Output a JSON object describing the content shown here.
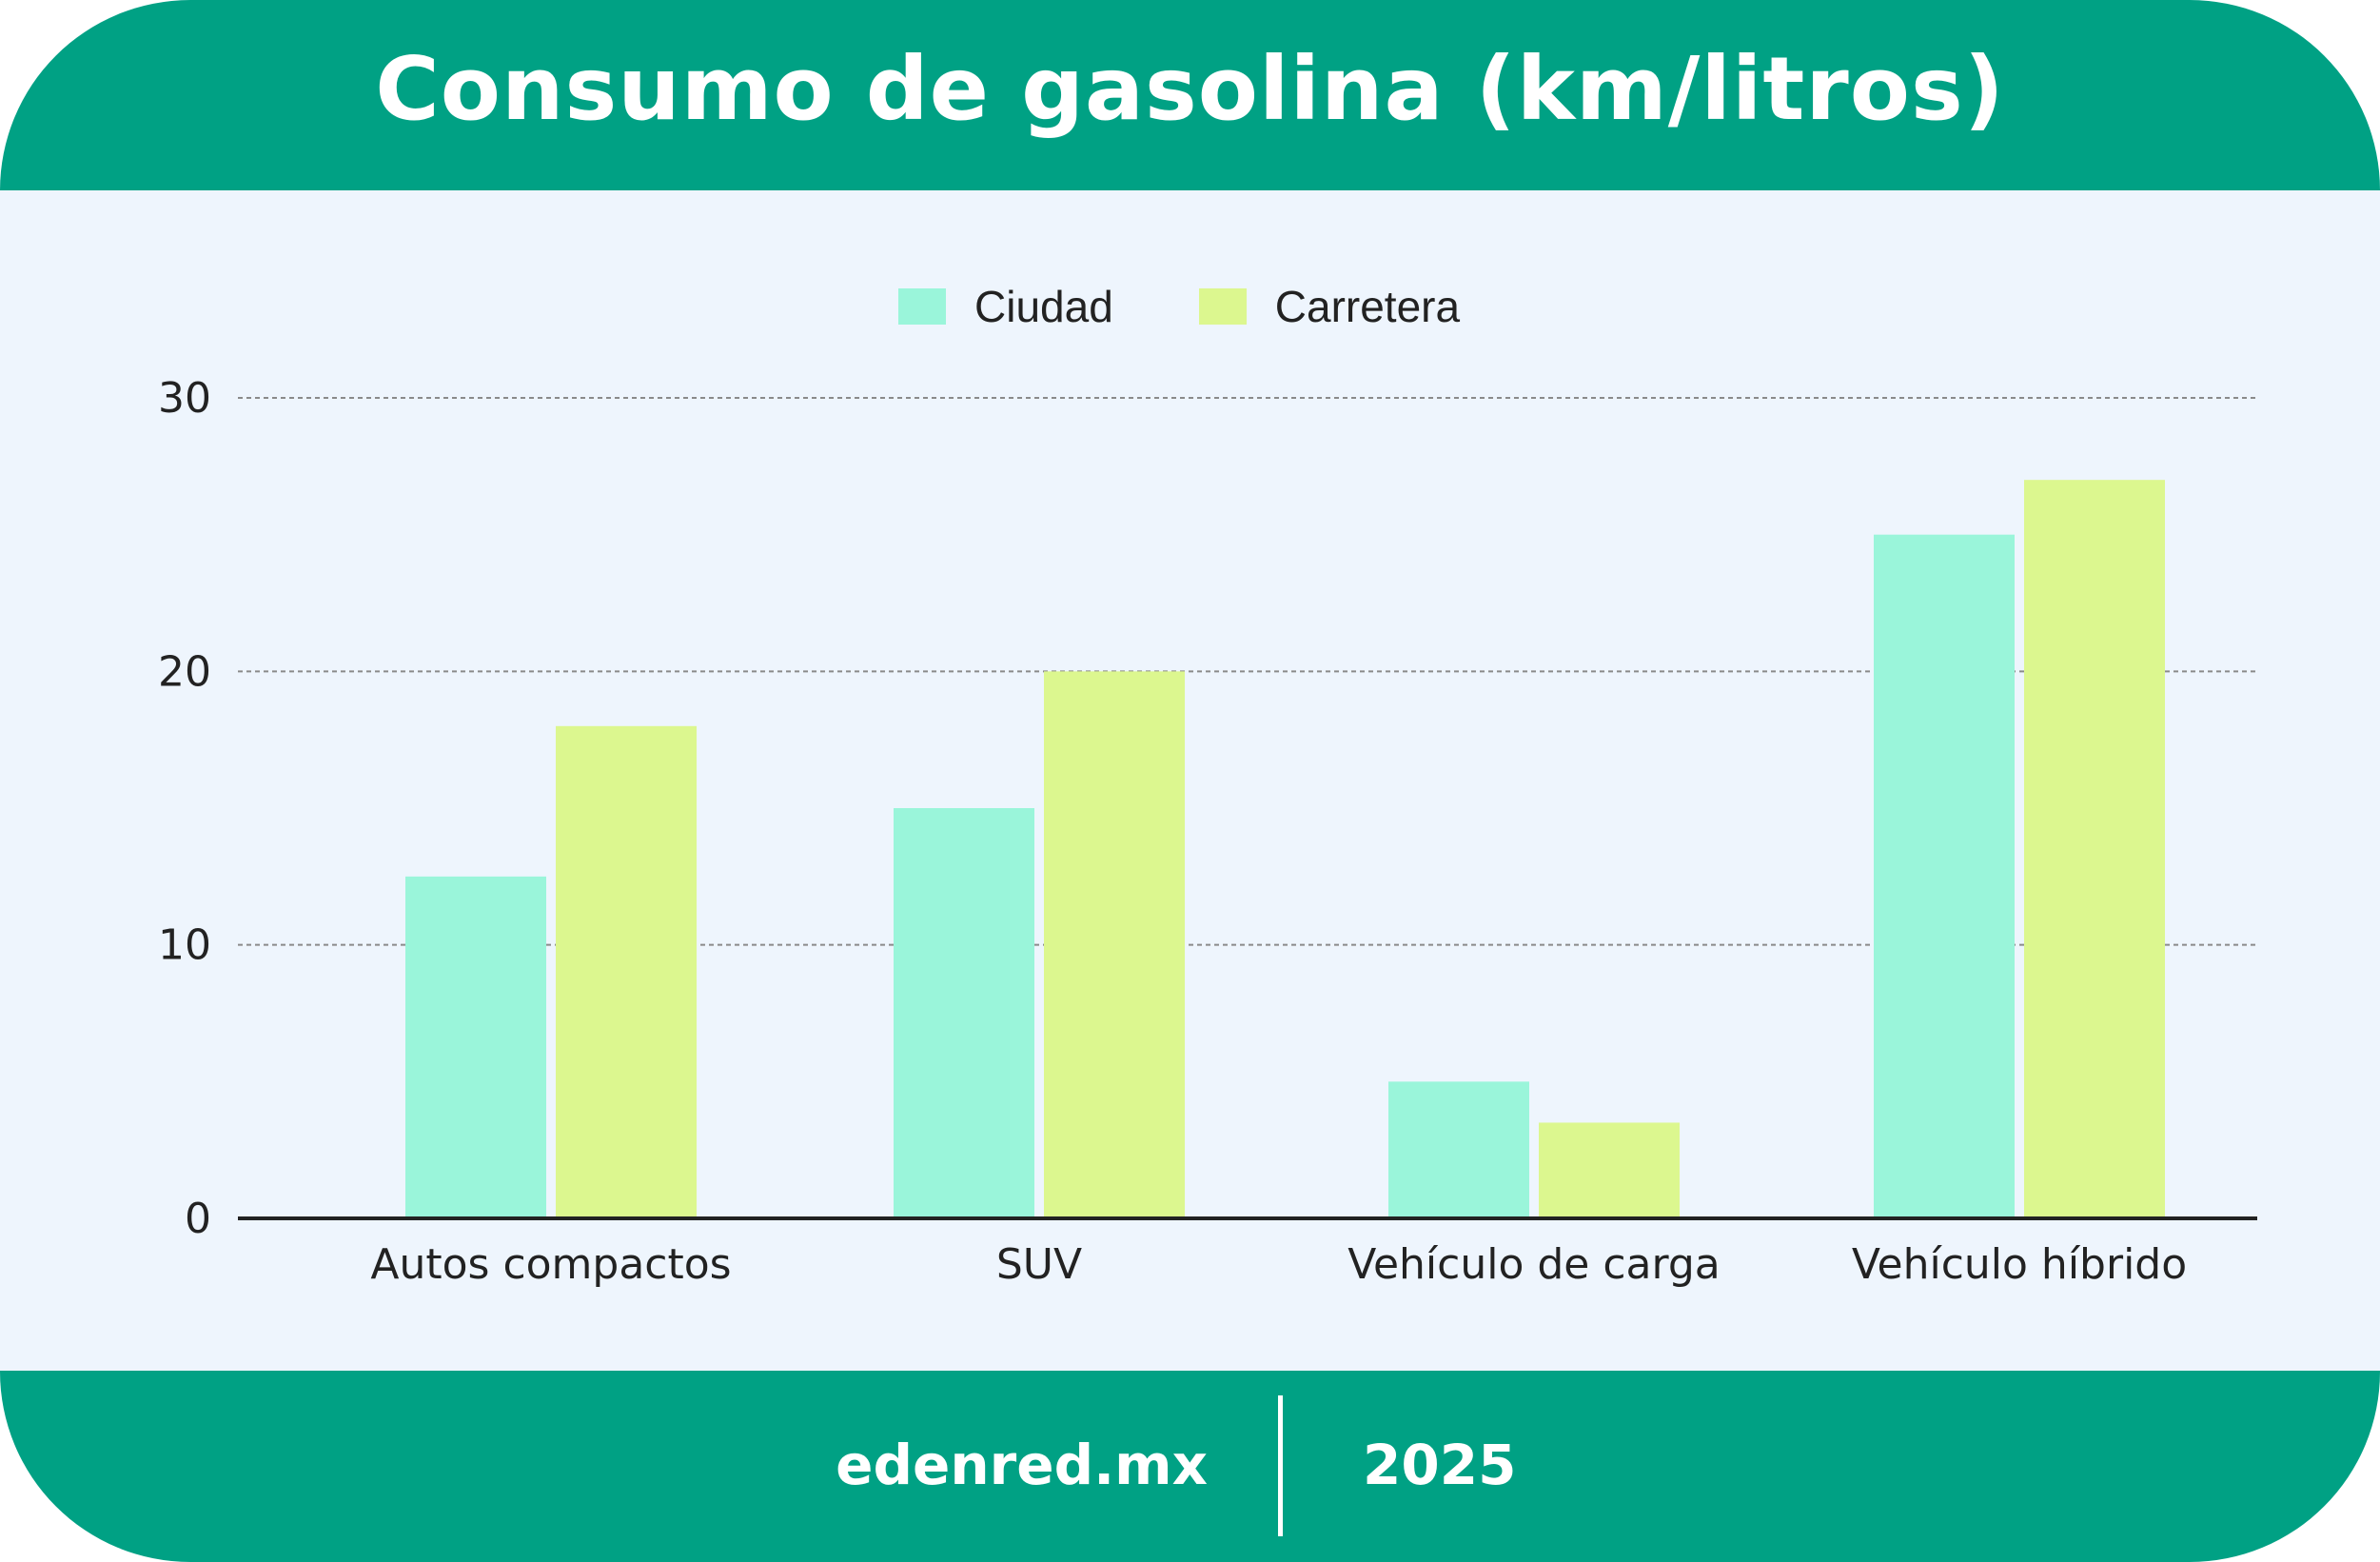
{
  "title": "Consumo de gasolina (km/litros)",
  "footer": {
    "site": "edenred.mx",
    "year": "2025"
  },
  "colors": {
    "brand": "#00a184",
    "background": "#eef5fd",
    "ciudad": "#9af5da",
    "carretera": "#dcf78f",
    "text": "#222222"
  },
  "chart_data": {
    "type": "bar",
    "title": "Consumo de gasolina (km/litros)",
    "xlabel": "",
    "ylabel": "",
    "ylim": [
      0,
      30
    ],
    "yticks": [
      0,
      10,
      20,
      30
    ],
    "grid": true,
    "legend_position": "top-center",
    "categories": [
      "Autos compactos",
      "SUV",
      "Vehículo de carga",
      "Vehículo híbrido"
    ],
    "series": [
      {
        "name": "Ciudad",
        "color": "#9af5da",
        "values": [
          12.5,
          15,
          5,
          25
        ]
      },
      {
        "name": "Carretera",
        "color": "#dcf78f",
        "values": [
          18,
          20,
          3.5,
          27
        ]
      }
    ]
  }
}
